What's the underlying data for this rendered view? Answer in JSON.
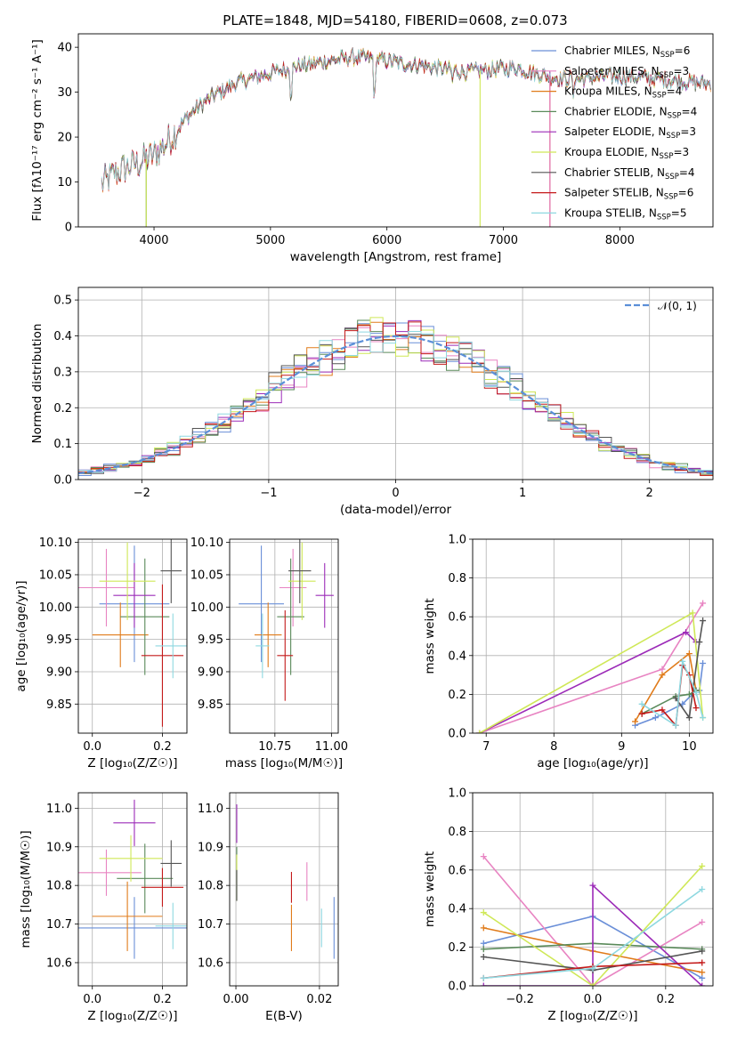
{
  "colors": {
    "chabrier_miles": "#6a8fd8",
    "salpeter_miles": "#e884c2",
    "kroupa_miles": "#e07b1a",
    "chabrier_elodie": "#5a8a5a",
    "salpeter_elodie": "#9c2bb8",
    "kroupa_elodie": "#cfe857",
    "chabrier_stelib": "#555555",
    "salpeter_stelib": "#c41a1a",
    "kroupa_stelib": "#8ed8e0",
    "gauss": "#5b8fd8"
  },
  "chart_data": [
    {
      "id": "spectrum",
      "type": "line",
      "title": "PLATE=1848, MJD=54180, FIBERID=0608, z=0.073",
      "xlabel": "wavelength [Angstrom, rest frame]",
      "ylabel": "Flux [fλ10⁻¹⁷ erg cm⁻² s⁻¹ A⁻¹]",
      "xlim": [
        3350,
        8800
      ],
      "ylim": [
        0,
        43
      ],
      "xticks": [
        "4000",
        "5000",
        "6000",
        "7000",
        "8000"
      ],
      "yticks": [
        "0",
        "10",
        "20",
        "30",
        "40"
      ],
      "grid": false,
      "legend": "right",
      "continuum": {
        "x": [
          3550,
          3700,
          3850,
          4000,
          4150,
          4300,
          4500,
          4700,
          4900,
          5100,
          5300,
          5500,
          5700,
          5900,
          6100,
          6300,
          6500,
          6700,
          6900,
          7100,
          7300,
          7500,
          7700,
          7900,
          8100,
          8300,
          8500,
          8700
        ],
        "y": [
          9.5,
          12.5,
          14,
          16,
          20,
          25,
          29,
          32,
          33.5,
          35,
          36,
          37,
          37.8,
          37.5,
          36.5,
          36,
          35,
          34.5,
          35,
          35.5,
          34,
          33,
          33,
          33.5,
          33.5,
          33,
          32.5,
          32
        ]
      },
      "dips": [
        {
          "x": 3933,
          "y": 0
        },
        {
          "x": 5175,
          "y": 28
        },
        {
          "x": 5893,
          "y": 29
        },
        {
          "x": 6563,
          "y": 31.5
        },
        {
          "x": 6800,
          "y": 0
        },
        {
          "x": 7400,
          "y": 0
        },
        {
          "x": 7600,
          "y": 28
        }
      ],
      "series": [
        {
          "name": "Chabrier MILES, N_SSP=6",
          "label": "Chabrier MILES, N",
          "n": "=6"
        },
        {
          "name": "Salpeter MILES, N_SSP=3",
          "label": "Salpeter MILES, N",
          "n": "=3"
        },
        {
          "name": "Kroupa MILES, N_SSP=4",
          "label": "Kroupa MILES, N",
          "n": "=4"
        },
        {
          "name": "Chabrier ELODIE, N_SSP=4",
          "label": "Chabrier ELODIE, N",
          "n": "=4"
        },
        {
          "name": "Salpeter ELODIE, N_SSP=3",
          "label": "Salpeter ELODIE, N",
          "n": "=3"
        },
        {
          "name": "Kroupa ELODIE, N_SSP=3",
          "label": "Kroupa ELODIE, N",
          "n": "=3"
        },
        {
          "name": "Chabrier STELIB, N_SSP=4",
          "label": "Chabrier STELIB, N",
          "n": "=4"
        },
        {
          "name": "Salpeter STELIB, N_SSP=6",
          "label": "Salpeter STELIB, N",
          "n": "=6"
        },
        {
          "name": "Kroupa STELIB, N_SSP=5",
          "label": "Kroupa STELIB, N",
          "n": "=5"
        }
      ],
      "subscript": "SSP"
    },
    {
      "id": "residual-hist",
      "type": "bar",
      "xlabel": "(data-model)/error",
      "ylabel": "Normed distribution",
      "xlim": [
        -2.5,
        2.5
      ],
      "ylim": [
        0,
        0.535
      ],
      "xticks": [
        "−2",
        "−1",
        "0",
        "1",
        "2"
      ],
      "yticks": [
        "0.0",
        "0.1",
        "0.2",
        "0.3",
        "0.4",
        "0.5"
      ],
      "grid": true,
      "legend": "top-right",
      "gauss_label": "𝒩(0, 1)",
      "bin_width": 0.1
    },
    {
      "id": "age-vs-z",
      "type": "scatter",
      "xlabel": "Z [log₁₀(Z/Z☉)]",
      "ylabel": "age  [log₁₀(age/yr)]",
      "xlim": [
        -0.04,
        0.27
      ],
      "ylim": [
        9.805,
        10.105
      ],
      "xticks": [
        "0.0",
        "0.2"
      ],
      "yticks": [
        "9.85",
        "9.90",
        "9.95",
        "10.00",
        "10.05",
        "10.10"
      ],
      "grid": true,
      "points": [
        {
          "x": 0.12,
          "y": 10.005,
          "xerr": 0.1,
          "yerr": 0.09
        },
        {
          "x": 0.04,
          "y": 10.03,
          "xerr": 0.08,
          "yerr": 0.06
        },
        {
          "x": 0.08,
          "y": 9.957,
          "xerr": 0.08,
          "yerr": 0.05
        },
        {
          "x": 0.15,
          "y": 9.985,
          "xerr": 0.07,
          "yerr": 0.09
        },
        {
          "x": 0.12,
          "y": 10.018,
          "xerr": 0.06,
          "yerr": 0.05
        },
        {
          "x": 0.1,
          "y": 10.04,
          "xerr": 0.08,
          "yerr": 0.06
        },
        {
          "x": 0.225,
          "y": 10.056,
          "xerr": 0.03,
          "yerr": 0.05
        },
        {
          "x": 0.2,
          "y": 9.925,
          "xerr": 0.06,
          "yerr": 0.11
        },
        {
          "x": 0.23,
          "y": 9.94,
          "xerr": 0.05,
          "yerr": 0.05
        }
      ]
    },
    {
      "id": "age-vs-mass",
      "type": "scatter",
      "xlabel": "mass [log₁₀(M/M☉)]",
      "ylabel": "",
      "xlim": [
        10.55,
        11.03
      ],
      "ylim": [
        9.805,
        10.105
      ],
      "xticks": [
        "10.75",
        "11.00"
      ],
      "yticks": [
        "9.85",
        "9.90",
        "9.95",
        "10.00",
        "10.05",
        "10.10"
      ],
      "grid": true,
      "points": [
        {
          "x": 10.69,
          "y": 10.005,
          "xerr": 0.1,
          "yerr": 0.09
        },
        {
          "x": 10.83,
          "y": 10.03,
          "xerr": 0.06,
          "yerr": 0.06
        },
        {
          "x": 10.72,
          "y": 9.957,
          "xerr": 0.06,
          "yerr": 0.05
        },
        {
          "x": 10.82,
          "y": 9.985,
          "xerr": 0.06,
          "yerr": 0.09
        },
        {
          "x": 10.97,
          "y": 10.018,
          "xerr": 0.04,
          "yerr": 0.05
        },
        {
          "x": 10.87,
          "y": 10.04,
          "xerr": 0.06,
          "yerr": 0.06
        },
        {
          "x": 10.86,
          "y": 10.056,
          "xerr": 0.05,
          "yerr": 0.05
        },
        {
          "x": 10.795,
          "y": 9.925,
          "xerr": 0.035,
          "yerr": 0.07
        },
        {
          "x": 10.695,
          "y": 9.94,
          "xerr": 0.03,
          "yerr": 0.05
        }
      ]
    },
    {
      "id": "mass-weight-vs-age",
      "type": "line",
      "xlabel": "age  [log₁₀(age/yr)]",
      "ylabel": "mass weight",
      "xlim": [
        6.8,
        10.35
      ],
      "ylim": [
        0,
        1
      ],
      "xticks": [
        "7",
        "8",
        "9",
        "10"
      ],
      "yticks": [
        "0.0",
        "0.2",
        "0.4",
        "0.6",
        "0.8",
        "1.0"
      ],
      "grid": true,
      "series": [
        {
          "name": "Chabrier MILES",
          "x": [
            9.2,
            9.5,
            9.9,
            10.1,
            10.15,
            10.2
          ],
          "y": [
            0.04,
            0.08,
            0.15,
            0.22,
            0.22,
            0.36
          ]
        },
        {
          "name": "Salpeter MILES",
          "x": [
            6.9,
            9.6,
            10.2
          ],
          "y": [
            0.0,
            0.33,
            0.67
          ]
        },
        {
          "name": "Kroupa MILES",
          "x": [
            9.2,
            9.6,
            10.0,
            10.1
          ],
          "y": [
            0.06,
            0.3,
            0.41,
            0.22
          ]
        },
        {
          "name": "Chabrier ELODIE",
          "x": [
            9.3,
            9.8,
            10.0,
            10.1
          ],
          "y": [
            0.1,
            0.19,
            0.2,
            0.22
          ]
        },
        {
          "name": "Salpeter ELODIE",
          "x": [
            6.9,
            9.95,
            10.1
          ],
          "y": [
            0.0,
            0.52,
            0.47
          ]
        },
        {
          "name": "Kroupa ELODIE",
          "x": [
            6.9,
            10.05,
            10.2
          ],
          "y": [
            0.0,
            0.62,
            0.08
          ]
        },
        {
          "name": "Chabrier STELIB",
          "x": [
            9.8,
            10.0,
            10.15,
            10.2
          ],
          "y": [
            0.18,
            0.08,
            0.47,
            0.58
          ]
        },
        {
          "name": "Salpeter STELIB",
          "x": [
            9.3,
            9.6,
            9.8,
            9.9,
            10.0,
            10.1
          ],
          "y": [
            0.1,
            0.12,
            0.04,
            0.35,
            0.3,
            0.13
          ]
        },
        {
          "name": "Kroupa STELIB",
          "x": [
            9.3,
            9.8,
            9.9,
            10.1,
            10.2
          ],
          "y": [
            0.15,
            0.04,
            0.37,
            0.21,
            0.08
          ]
        }
      ]
    },
    {
      "id": "mass-vs-z",
      "type": "scatter",
      "xlabel": "Z [log₁₀(Z/Z☉)]",
      "ylabel": "mass [log₁₀(M/M☉)]",
      "xlim": [
        -0.04,
        0.27
      ],
      "ylim": [
        10.54,
        11.04
      ],
      "xticks": [
        "0.0",
        "0.2"
      ],
      "yticks": [
        "10.6",
        "10.7",
        "10.8",
        "10.9",
        "11.0"
      ],
      "grid": true,
      "points": [
        {
          "x": 0.12,
          "y": 10.69,
          "xerr": 0.16,
          "yerr": 0.08
        },
        {
          "x": 0.04,
          "y": 10.833,
          "xerr": 0.1,
          "yerr": 0.06
        },
        {
          "x": 0.1,
          "y": 10.72,
          "xerr": 0.1,
          "yerr": 0.09
        },
        {
          "x": 0.15,
          "y": 10.818,
          "xerr": 0.08,
          "yerr": 0.09
        },
        {
          "x": 0.12,
          "y": 10.962,
          "xerr": 0.06,
          "yerr": 0.06
        },
        {
          "x": 0.11,
          "y": 10.87,
          "xerr": 0.09,
          "yerr": 0.06
        },
        {
          "x": 0.225,
          "y": 10.857,
          "xerr": 0.03,
          "yerr": 0.06
        },
        {
          "x": 0.2,
          "y": 10.795,
          "xerr": 0.06,
          "yerr": 0.05
        },
        {
          "x": 0.23,
          "y": 10.695,
          "xerr": 0.05,
          "yerr": 0.06
        }
      ]
    },
    {
      "id": "mass-vs-ebv",
      "type": "scatter",
      "xlabel": "E(B-V)",
      "ylabel": "",
      "xlim": [
        -0.0015,
        0.0245
      ],
      "ylim": [
        10.54,
        11.04
      ],
      "xticks": [
        "0.00",
        "0.02"
      ],
      "yticks": [
        "10.6",
        "10.7",
        "10.8",
        "10.9",
        "11.0"
      ],
      "grid": true,
      "points": [
        {
          "x": 0.0235,
          "y": 10.69,
          "xerr": 0,
          "yerr": 0.08
        },
        {
          "x": 0.017,
          "y": 10.81,
          "xerr": 0,
          "yerr": 0.05
        },
        {
          "x": 0.0133,
          "y": 10.69,
          "xerr": 0,
          "yerr": 0.06
        },
        {
          "x": 0.0002,
          "y": 10.83,
          "xerr": 0,
          "yerr": 0.07
        },
        {
          "x": 0.0002,
          "y": 10.96,
          "xerr": 0,
          "yerr": 0.05
        },
        {
          "x": 0.0002,
          "y": 10.82,
          "xerr": 0,
          "yerr": 0.06
        },
        {
          "x": 0.0002,
          "y": 10.8,
          "xerr": 0,
          "yerr": 0.04
        },
        {
          "x": 0.0133,
          "y": 10.795,
          "xerr": 0,
          "yerr": 0.04
        },
        {
          "x": 0.0205,
          "y": 10.69,
          "xerr": 0,
          "yerr": 0.05
        }
      ]
    },
    {
      "id": "mass-weight-vs-z",
      "type": "line",
      "xlabel": "Z [log₁₀(Z/Z☉)]",
      "ylabel": "mass weight",
      "xlim": [
        -0.33,
        0.33
      ],
      "ylim": [
        0,
        1
      ],
      "xticks": [
        "−0.2",
        "0.0",
        "0.2"
      ],
      "yticks": [
        "0.0",
        "0.2",
        "0.4",
        "0.6",
        "0.8",
        "1.0"
      ],
      "grid": true,
      "series": [
        {
          "name": "Chabrier MILES",
          "x": [
            -0.3,
            0.0,
            0.3
          ],
          "y": [
            0.22,
            0.36,
            0.04
          ]
        },
        {
          "name": "Salpeter MILES",
          "x": [
            -0.3,
            0.0,
            0.3
          ],
          "y": [
            0.67,
            0.0,
            0.33
          ]
        },
        {
          "name": "Kroupa MILES",
          "x": [
            -0.3,
            0.0,
            0.3
          ],
          "y": [
            0.3,
            0.18,
            0.07
          ]
        },
        {
          "name": "Chabrier ELODIE",
          "x": [
            -0.3,
            0.0,
            0.3
          ],
          "y": [
            0.19,
            0.22,
            0.19
          ]
        },
        {
          "name": "Salpeter ELODIE",
          "x": [
            -0.3,
            0.0,
            0.0,
            0.3
          ],
          "y": [
            0.0,
            0.0,
            0.52,
            0.0
          ]
        },
        {
          "name": "Kroupa ELODIE",
          "x": [
            -0.3,
            0.0,
            0.3
          ],
          "y": [
            0.38,
            0.0,
            0.62
          ]
        },
        {
          "name": "Chabrier STELIB",
          "x": [
            -0.3,
            0.0,
            0.3
          ],
          "y": [
            0.15,
            0.08,
            0.18
          ]
        },
        {
          "name": "Salpeter STELIB",
          "x": [
            -0.3,
            0.0,
            0.3
          ],
          "y": [
            0.04,
            0.1,
            0.12
          ]
        },
        {
          "name": "Kroupa STELIB",
          "x": [
            -0.3,
            0.0,
            0.3
          ],
          "y": [
            0.04,
            0.09,
            0.5
          ]
        }
      ]
    }
  ]
}
